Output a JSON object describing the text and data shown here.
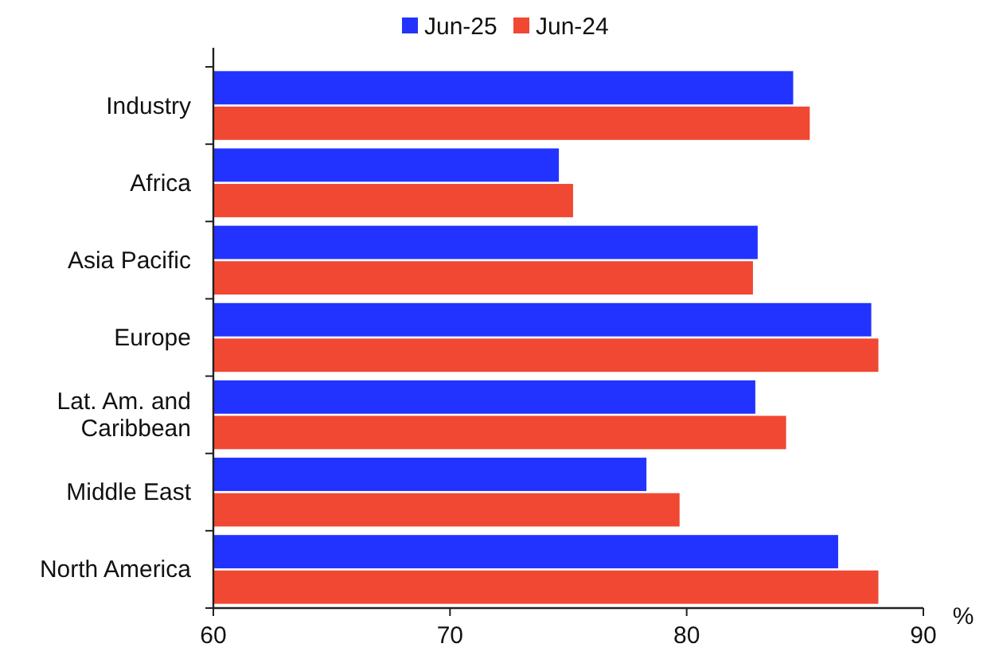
{
  "chart_data": {
    "type": "bar",
    "orientation": "horizontal",
    "xlabel": "%",
    "categories": [
      "Industry",
      "Africa",
      "Asia Pacific",
      "Europe",
      "Lat. Am. and Caribbean",
      "Middle East",
      "North America"
    ],
    "series": [
      {
        "name": "Jun-25",
        "color": "#2233ff",
        "values": [
          84.5,
          74.6,
          83.0,
          87.8,
          82.9,
          78.3,
          86.4
        ]
      },
      {
        "name": "Jun-24",
        "color": "#f04832",
        "values": [
          85.2,
          75.2,
          82.8,
          88.1,
          84.2,
          79.7,
          88.1
        ]
      }
    ],
    "xlim": [
      60,
      90
    ],
    "xticks": [
      60,
      70,
      80,
      90
    ],
    "legend": "top",
    "grid": false
  }
}
